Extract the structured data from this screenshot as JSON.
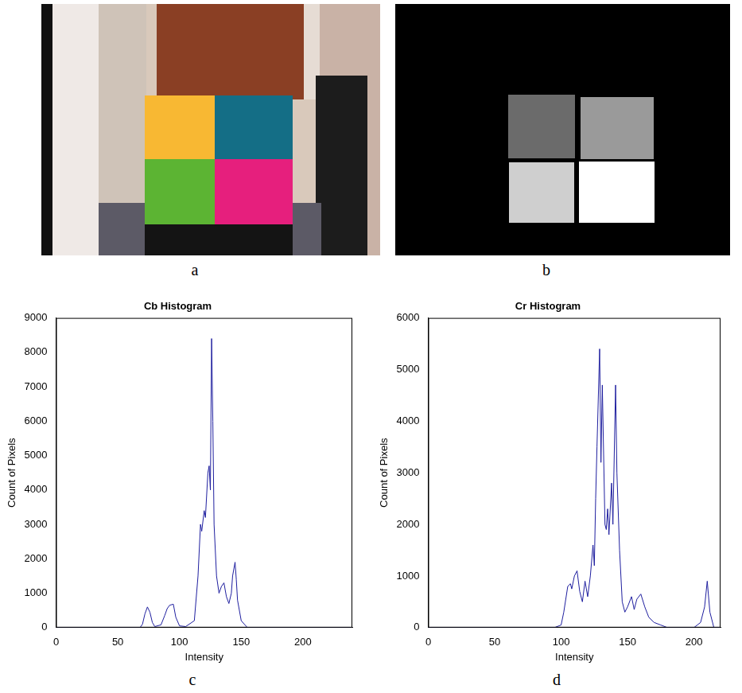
{
  "panels": [
    "a",
    "b",
    "c",
    "d"
  ],
  "chart_data": [
    {
      "type": "line",
      "title": "Cb Histogram",
      "xlabel": "Intensity",
      "ylabel": "Count of Pixels",
      "x": [
        0,
        60,
        68,
        70,
        72,
        74,
        76,
        78,
        80,
        85,
        88,
        90,
        92,
        95,
        97,
        100,
        105,
        112,
        115,
        117,
        118,
        120,
        121,
        123,
        124,
        125,
        126,
        127,
        128,
        130,
        132,
        134,
        136,
        138,
        140,
        142,
        143,
        145,
        146,
        147,
        150,
        155,
        170,
        240
      ],
      "values": [
        0,
        0,
        0,
        100,
        400,
        600,
        450,
        150,
        30,
        80,
        350,
        550,
        650,
        680,
        300,
        50,
        30,
        200,
        1500,
        3000,
        2800,
        3400,
        3200,
        4500,
        4700,
        4000,
        8400,
        6000,
        3000,
        1500,
        1000,
        1200,
        1300,
        900,
        700,
        1000,
        1500,
        1900,
        1400,
        800,
        200,
        0,
        0,
        0
      ],
      "color": "#1f1f9f",
      "xlim": [
        0,
        240
      ],
      "xticks": [
        0,
        50,
        100,
        150,
        200
      ],
      "ylim": [
        0,
        9000
      ],
      "yticks": [
        0,
        1000,
        2000,
        3000,
        4000,
        5000,
        6000,
        7000,
        8000,
        9000
      ],
      "grid": false
    },
    {
      "type": "line",
      "title": "Cr Histogram",
      "xlabel": "Intensity",
      "ylabel": "Count of Pixels",
      "x": [
        0,
        95,
        100,
        102,
        105,
        107,
        108,
        110,
        112,
        114,
        116,
        118,
        120,
        122,
        124,
        125,
        126,
        127,
        129,
        130,
        131,
        133,
        134,
        135,
        136,
        138,
        139,
        141,
        142,
        144,
        146,
        148,
        150,
        153,
        155,
        157,
        160,
        163,
        166,
        170,
        175,
        180,
        200,
        205,
        208,
        210,
        212,
        215,
        220
      ],
      "values": [
        0,
        0,
        50,
        300,
        800,
        850,
        750,
        1000,
        1100,
        700,
        500,
        900,
        600,
        1000,
        1600,
        1200,
        2500,
        3500,
        5400,
        3200,
        4700,
        2000,
        1900,
        2300,
        1800,
        2800,
        2000,
        4700,
        3000,
        1500,
        500,
        300,
        400,
        600,
        350,
        550,
        650,
        400,
        200,
        100,
        50,
        0,
        0,
        100,
        400,
        900,
        300,
        0,
        0
      ],
      "color": "#1f1f9f",
      "xlim": [
        0,
        220
      ],
      "xticks": [
        0,
        50,
        100,
        150,
        200
      ],
      "ylim": [
        0,
        6000
      ],
      "yticks": [
        0,
        1000,
        2000,
        3000,
        4000,
        5000,
        6000
      ],
      "grid": false
    }
  ]
}
